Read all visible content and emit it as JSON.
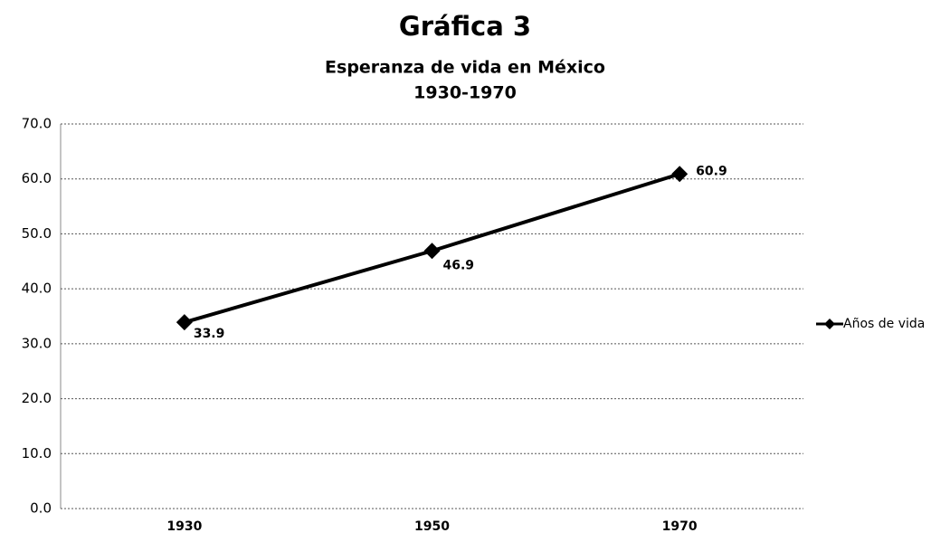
{
  "chart_data": {
    "type": "line",
    "title": "Gráfica 3",
    "subtitle": [
      "Esperanza de vida en México",
      "1930-1970"
    ],
    "categories": [
      "1930",
      "1950",
      "1970"
    ],
    "series": [
      {
        "name": "Años de vida",
        "color": "#000000",
        "values": [
          33.9,
          46.9,
          60.9
        ]
      }
    ],
    "ylim": [
      0,
      70
    ],
    "yticks": [
      {
        "value": 0,
        "label": "0.0"
      },
      {
        "value": 10,
        "label": "10.0"
      },
      {
        "value": 20,
        "label": "20.0"
      },
      {
        "value": 30,
        "label": "30.0"
      },
      {
        "value": 40,
        "label": "40.0"
      },
      {
        "value": 50,
        "label": "50.0"
      },
      {
        "value": 60,
        "label": "60.0"
      },
      {
        "value": 70,
        "label": "70.0"
      }
    ],
    "grid": true,
    "legend": "right"
  }
}
